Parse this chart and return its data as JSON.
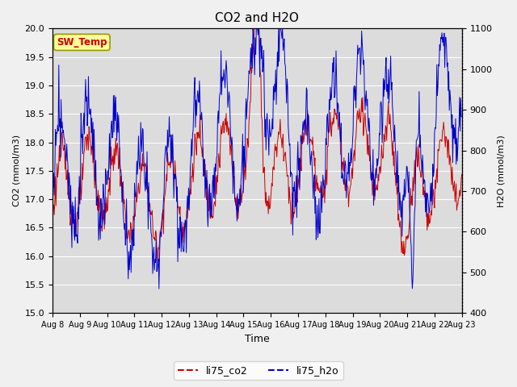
{
  "title": "CO2 and H2O",
  "xlabel": "Time",
  "ylabel_left": "CO2 (mmol/m3)",
  "ylabel_right": "H2O (mmol/m3)",
  "ylim_left": [
    15.0,
    20.0
  ],
  "ylim_right": [
    400,
    1100
  ],
  "yticks_left": [
    15.0,
    15.5,
    16.0,
    16.5,
    17.0,
    17.5,
    18.0,
    18.5,
    19.0,
    19.5,
    20.0
  ],
  "yticks_right": [
    400,
    500,
    600,
    700,
    800,
    900,
    1000,
    1100
  ],
  "xtick_labels": [
    "Aug 8",
    "Aug 9",
    "Aug 10",
    "Aug 11",
    "Aug 12",
    "Aug 13",
    "Aug 14",
    "Aug 15",
    "Aug 16",
    "Aug 17",
    "Aug 18",
    "Aug 19",
    "Aug 20",
    "Aug 21",
    "Aug 22",
    "Aug 23"
  ],
  "color_co2": "#CC0000",
  "color_h2o": "#0000CC",
  "legend_label_co2": "li75_co2",
  "legend_label_h2o": "li75_h2o",
  "annotation_text": "SW_Temp",
  "annotation_color": "#CC0000",
  "annotation_bg": "#FFFF99",
  "background_color": "#DCDCDC",
  "grid_color": "#FFFFFF",
  "fig_bg_color": "#F0F0F0",
  "title_fontsize": 11
}
